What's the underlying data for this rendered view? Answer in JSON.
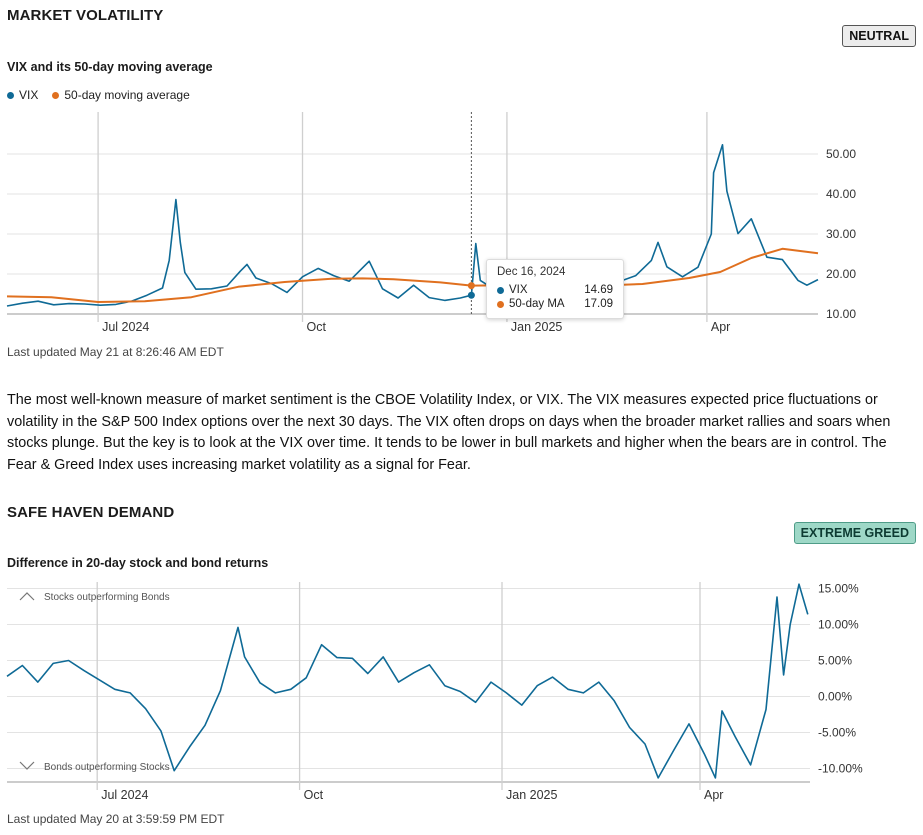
{
  "volatility": {
    "title": "MARKET VOLATILITY",
    "badge": "NEUTRAL",
    "subtitle": "VIX and its 50-day moving average",
    "legend": [
      {
        "label": "VIX",
        "color": "#0f6a96"
      },
      {
        "label": "50-day moving average",
        "color": "#e0701f"
      }
    ],
    "tooltip": {
      "date": "Dec 16, 2024",
      "rows": [
        {
          "label": "VIX",
          "value": "14.69",
          "color": "#0f6a96"
        },
        {
          "label": "50-day MA",
          "value": "17.09",
          "color": "#e0701f"
        }
      ]
    },
    "updated": "Last updated May 21 at 8:26:46 AM EDT",
    "description": "The most well-known measure of market sentiment is the CBOE Volatility Index, or VIX. The VIX measures expected price fluctuations or volatility in the S&P 500 Index options over the next 30 days. The VIX often drops on days when the broader market rallies and soars when stocks plunge. But the key is to look at the VIX over time. It tends to be lower in bull markets and higher when the bears are in control. The Fear & Greed Index uses increasing market volatility as a signal for Fear."
  },
  "safe_haven": {
    "title": "SAFE HAVEN DEMAND",
    "badge": "EXTREME GREED",
    "subtitle": "Difference in 20-day stock and bond returns",
    "annotation_top": "Stocks outperforming Bonds",
    "annotation_bottom": "Bonds outperforming Stocks",
    "updated": "Last updated May 20 at 3:59:59 PM EDT"
  },
  "chart_data": [
    {
      "type": "line",
      "x_axis": "time",
      "xlim": [
        "2024-05-21",
        "2025-05-21"
      ],
      "x_ticks": [
        {
          "label": "Jul 2024",
          "date": "2024-07-01"
        },
        {
          "label": "Oct",
          "date": "2024-10-01"
        },
        {
          "label": "Jan 2025",
          "date": "2025-01-01"
        },
        {
          "label": "Apr",
          "date": "2025-04-01"
        }
      ],
      "ylim": [
        10,
        55
      ],
      "y_ticks": [
        "10.00",
        "20.00",
        "30.00",
        "40.00",
        "50.00"
      ],
      "y_tick_values": [
        10,
        20,
        30,
        40,
        50
      ],
      "grid": true,
      "highlight_date": "2024-12-16",
      "series": [
        {
          "name": "VIX",
          "color": "#0f6a96",
          "points": [
            [
              "2024-05-21",
              12.0
            ],
            [
              "2024-05-28",
              12.7
            ],
            [
              "2024-06-04",
              13.2
            ],
            [
              "2024-06-11",
              12.3
            ],
            [
              "2024-06-18",
              12.6
            ],
            [
              "2024-06-25",
              12.5
            ],
            [
              "2024-07-02",
              12.2
            ],
            [
              "2024-07-09",
              12.4
            ],
            [
              "2024-07-16",
              13.2
            ],
            [
              "2024-07-23",
              14.7
            ],
            [
              "2024-07-30",
              16.5
            ],
            [
              "2024-08-02",
              23.4
            ],
            [
              "2024-08-05",
              38.6
            ],
            [
              "2024-08-07",
              27.9
            ],
            [
              "2024-08-09",
              20.4
            ],
            [
              "2024-08-14",
              16.2
            ],
            [
              "2024-08-21",
              16.3
            ],
            [
              "2024-08-28",
              17.0
            ],
            [
              "2024-09-03",
              20.7
            ],
            [
              "2024-09-06",
              22.4
            ],
            [
              "2024-09-10",
              19.0
            ],
            [
              "2024-09-17",
              17.6
            ],
            [
              "2024-09-24",
              15.4
            ],
            [
              "2024-10-01",
              19.3
            ],
            [
              "2024-10-08",
              21.4
            ],
            [
              "2024-10-15",
              19.6
            ],
            [
              "2024-10-22",
              18.2
            ],
            [
              "2024-10-31",
              23.2
            ],
            [
              "2024-11-06",
              16.3
            ],
            [
              "2024-11-13",
              14.0
            ],
            [
              "2024-11-20",
              17.2
            ],
            [
              "2024-11-27",
              14.1
            ],
            [
              "2024-12-04",
              13.4
            ],
            [
              "2024-12-11",
              14.0
            ],
            [
              "2024-12-16",
              14.69
            ],
            [
              "2024-12-18",
              27.6
            ],
            [
              "2024-12-20",
              18.4
            ],
            [
              "2024-12-27",
              15.9
            ],
            [
              "2025-01-02",
              17.9
            ],
            [
              "2025-01-10",
              19.5
            ],
            [
              "2025-01-17",
              16.0
            ],
            [
              "2025-01-27",
              17.9
            ],
            [
              "2025-02-03",
              18.6
            ],
            [
              "2025-02-14",
              14.8
            ],
            [
              "2025-02-21",
              18.2
            ],
            [
              "2025-02-28",
              19.6
            ],
            [
              "2025-03-07",
              23.4
            ],
            [
              "2025-03-10",
              27.9
            ],
            [
              "2025-03-14",
              21.8
            ],
            [
              "2025-03-21",
              19.3
            ],
            [
              "2025-03-28",
              21.7
            ],
            [
              "2025-04-03",
              30.0
            ],
            [
              "2025-04-04",
              45.3
            ],
            [
              "2025-04-08",
              52.3
            ],
            [
              "2025-04-10",
              40.7
            ],
            [
              "2025-04-15",
              30.1
            ],
            [
              "2025-04-21",
              33.8
            ],
            [
              "2025-04-28",
              24.2
            ],
            [
              "2025-05-05",
              23.6
            ],
            [
              "2025-05-12",
              18.4
            ],
            [
              "2025-05-16",
              17.2
            ],
            [
              "2025-05-21",
              18.6
            ]
          ]
        },
        {
          "name": "50-day moving average",
          "color": "#e0701f",
          "points": [
            [
              "2024-05-21",
              14.4
            ],
            [
              "2024-06-10",
              14.2
            ],
            [
              "2024-07-01",
              13.0
            ],
            [
              "2024-07-22",
              13.2
            ],
            [
              "2024-08-12",
              14.2
            ],
            [
              "2024-09-02",
              16.8
            ],
            [
              "2024-09-23",
              18.0
            ],
            [
              "2024-10-14",
              18.8
            ],
            [
              "2024-10-28",
              18.9
            ],
            [
              "2024-11-11",
              18.7
            ],
            [
              "2024-12-02",
              17.9
            ],
            [
              "2024-12-16",
              17.09
            ],
            [
              "2025-01-06",
              17.2
            ],
            [
              "2025-02-03",
              16.9
            ],
            [
              "2025-03-03",
              17.5
            ],
            [
              "2025-03-24",
              19.0
            ],
            [
              "2025-04-07",
              20.5
            ],
            [
              "2025-04-21",
              24.0
            ],
            [
              "2025-05-05",
              26.3
            ],
            [
              "2025-05-21",
              25.2
            ]
          ]
        }
      ]
    },
    {
      "type": "line",
      "x_axis": "time",
      "xlim": [
        "2024-05-21",
        "2025-05-21"
      ],
      "x_ticks": [
        {
          "label": "Jul 2024",
          "date": "2024-07-01"
        },
        {
          "label": "Oct",
          "date": "2024-10-01"
        },
        {
          "label": "Jan 2025",
          "date": "2025-01-01"
        },
        {
          "label": "Apr",
          "date": "2025-04-01"
        }
      ],
      "ylim": [
        -12,
        16
      ],
      "y_ticks": [
        "15.00%",
        "10.00%",
        "5.00%",
        "0.00%",
        "-5.00%",
        "-10.00%"
      ],
      "y_tick_values": [
        15,
        10,
        5,
        0,
        -5,
        -10
      ],
      "grid": true,
      "series": [
        {
          "color": "#0f6a96",
          "points": [
            [
              "2024-05-21",
              2.8
            ],
            [
              "2024-05-28",
              4.3
            ],
            [
              "2024-06-04",
              2.0
            ],
            [
              "2024-06-11",
              4.6
            ],
            [
              "2024-06-18",
              5.0
            ],
            [
              "2024-06-25",
              3.6
            ],
            [
              "2024-07-02",
              2.3
            ],
            [
              "2024-07-09",
              1.0
            ],
            [
              "2024-07-16",
              0.5
            ],
            [
              "2024-07-23",
              -1.7
            ],
            [
              "2024-07-30",
              -4.8
            ],
            [
              "2024-08-05",
              -10.3
            ],
            [
              "2024-08-12",
              -7.0
            ],
            [
              "2024-08-19",
              -4.0
            ],
            [
              "2024-08-26",
              0.8
            ],
            [
              "2024-09-03",
              9.6
            ],
            [
              "2024-09-06",
              5.5
            ],
            [
              "2024-09-13",
              1.9
            ],
            [
              "2024-09-20",
              0.5
            ],
            [
              "2024-09-27",
              1.0
            ],
            [
              "2024-10-04",
              2.6
            ],
            [
              "2024-10-11",
              7.2
            ],
            [
              "2024-10-18",
              5.4
            ],
            [
              "2024-10-25",
              5.3
            ],
            [
              "2024-11-01",
              3.2
            ],
            [
              "2024-11-08",
              5.5
            ],
            [
              "2024-11-15",
              2.0
            ],
            [
              "2024-11-22",
              3.3
            ],
            [
              "2024-11-29",
              4.4
            ],
            [
              "2024-12-06",
              1.5
            ],
            [
              "2024-12-13",
              0.7
            ],
            [
              "2024-12-20",
              -0.8
            ],
            [
              "2024-12-27",
              2.0
            ],
            [
              "2025-01-03",
              0.5
            ],
            [
              "2025-01-10",
              -1.2
            ],
            [
              "2025-01-17",
              1.5
            ],
            [
              "2025-01-24",
              2.7
            ],
            [
              "2025-01-31",
              1.0
            ],
            [
              "2025-02-07",
              0.5
            ],
            [
              "2025-02-14",
              2.0
            ],
            [
              "2025-02-21",
              -0.6
            ],
            [
              "2025-02-28",
              -4.3
            ],
            [
              "2025-03-07",
              -6.6
            ],
            [
              "2025-03-13",
              -11.3
            ],
            [
              "2025-03-20",
              -7.5
            ],
            [
              "2025-03-27",
              -3.8
            ],
            [
              "2025-04-03",
              -8.0
            ],
            [
              "2025-04-08",
              -11.3
            ],
            [
              "2025-04-11",
              -2.0
            ],
            [
              "2025-04-17",
              -5.6
            ],
            [
              "2025-04-24",
              -9.5
            ],
            [
              "2025-05-01",
              -1.8
            ],
            [
              "2025-05-06",
              13.8
            ],
            [
              "2025-05-09",
              3.0
            ],
            [
              "2025-05-12",
              10.0
            ],
            [
              "2025-05-16",
              15.6
            ],
            [
              "2025-05-20",
              11.4
            ]
          ]
        }
      ]
    }
  ]
}
